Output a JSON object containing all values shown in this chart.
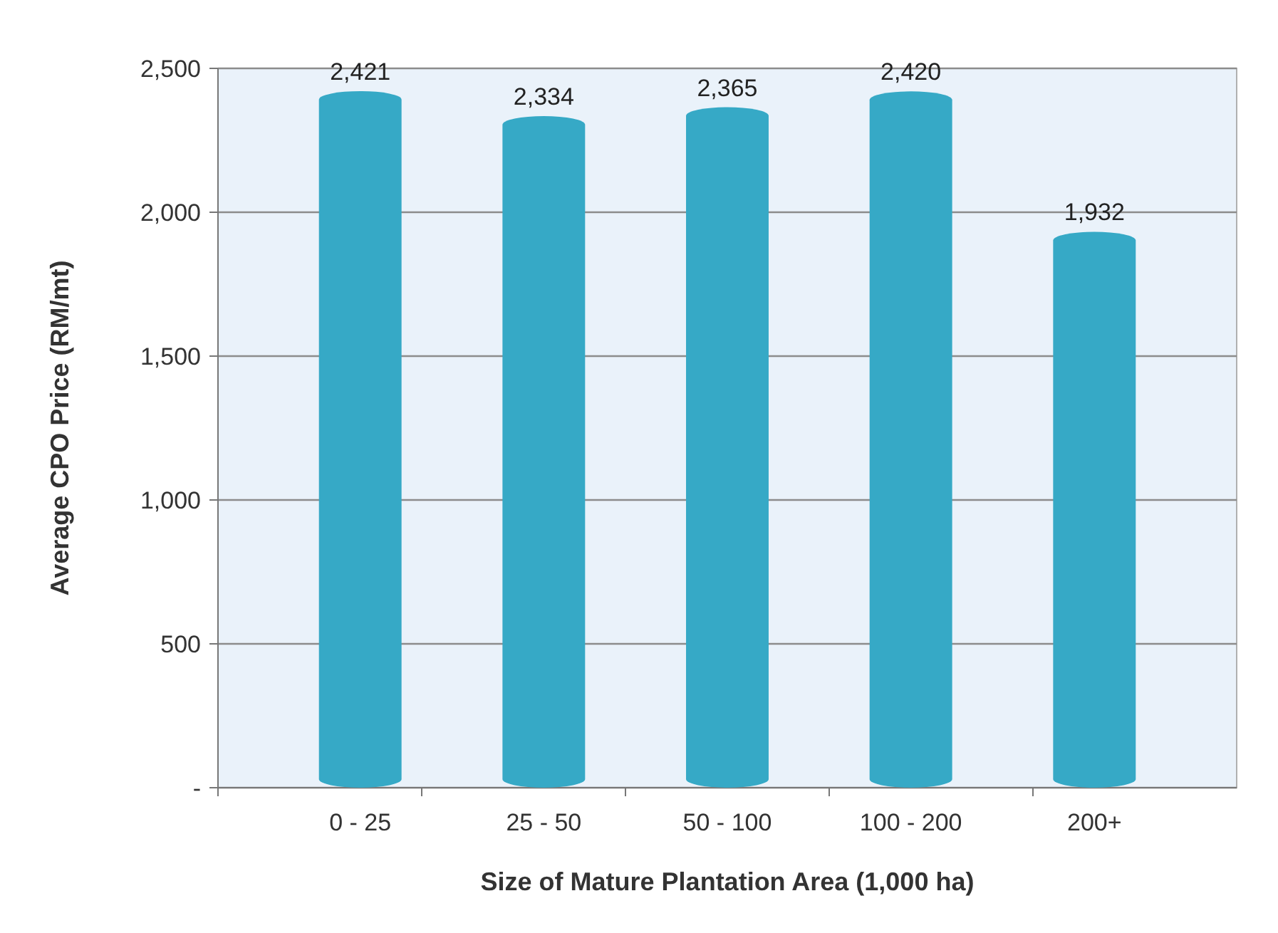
{
  "chart_data": {
    "type": "bar",
    "xlabel": "Size of Mature Plantation Area (1,000 ha)",
    "ylabel": "Average CPO Price (RM/mt)",
    "categories": [
      "0 - 25",
      "25 - 50",
      "50 - 100",
      "100 - 200",
      "200+"
    ],
    "values": [
      2421,
      2334,
      2365,
      2420,
      1932
    ],
    "value_labels": [
      "2,421",
      "2,334",
      "2,365",
      "2,420",
      "1,932"
    ],
    "color": "#36a9c6",
    "ylim": [
      0,
      2500
    ],
    "yticks": [
      {
        "value": 0,
        "label": "-"
      },
      {
        "value": 500,
        "label": "500"
      },
      {
        "value": 1000,
        "label": "1,000"
      },
      {
        "value": 1500,
        "label": "1,500"
      },
      {
        "value": 2000,
        "label": "2,000"
      },
      {
        "value": 2500,
        "label": "2,500"
      }
    ],
    "grid": "y"
  }
}
